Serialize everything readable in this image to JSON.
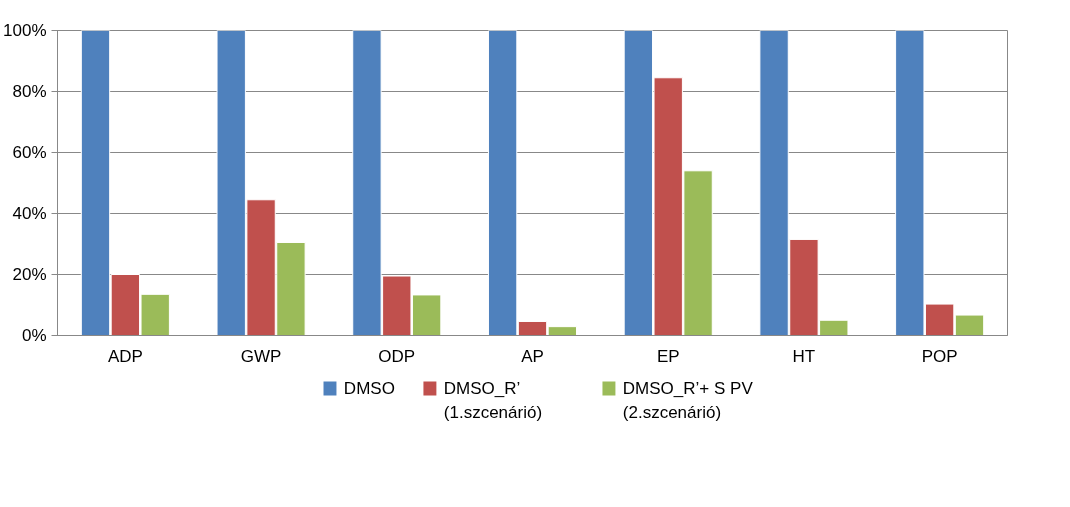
{
  "chart_data": {
    "type": "bar",
    "categories": [
      "ADP",
      "GWP",
      "ODP",
      "AP",
      "EP",
      "HT",
      "POP"
    ],
    "series": [
      {
        "name": "DMSO",
        "color": "#4f81bd",
        "values": [
          100,
          100,
          100,
          100,
          100,
          100,
          100
        ]
      },
      {
        "name": "DMSO_R’\n(1.szcenárió)",
        "color": "#c0504d",
        "values": [
          20,
          44.5,
          19.5,
          4.6,
          84.5,
          31.5,
          10.3
        ]
      },
      {
        "name": "DMSO_R’+ S PV\n(2.szcenárió)",
        "color": "#9bbb59",
        "values": [
          13.5,
          30.5,
          13.3,
          2.9,
          54,
          5,
          6.7
        ]
      }
    ],
    "ylim": [
      0,
      100
    ],
    "yticks": [
      {
        "value": 0,
        "label": "0%"
      },
      {
        "value": 20,
        "label": "20%"
      },
      {
        "value": 40,
        "label": "40%"
      },
      {
        "value": 60,
        "label": "60%"
      },
      {
        "value": 80,
        "label": "80%"
      },
      {
        "value": 100,
        "label": "100%"
      }
    ],
    "grid": "y",
    "legend": "bottom"
  }
}
